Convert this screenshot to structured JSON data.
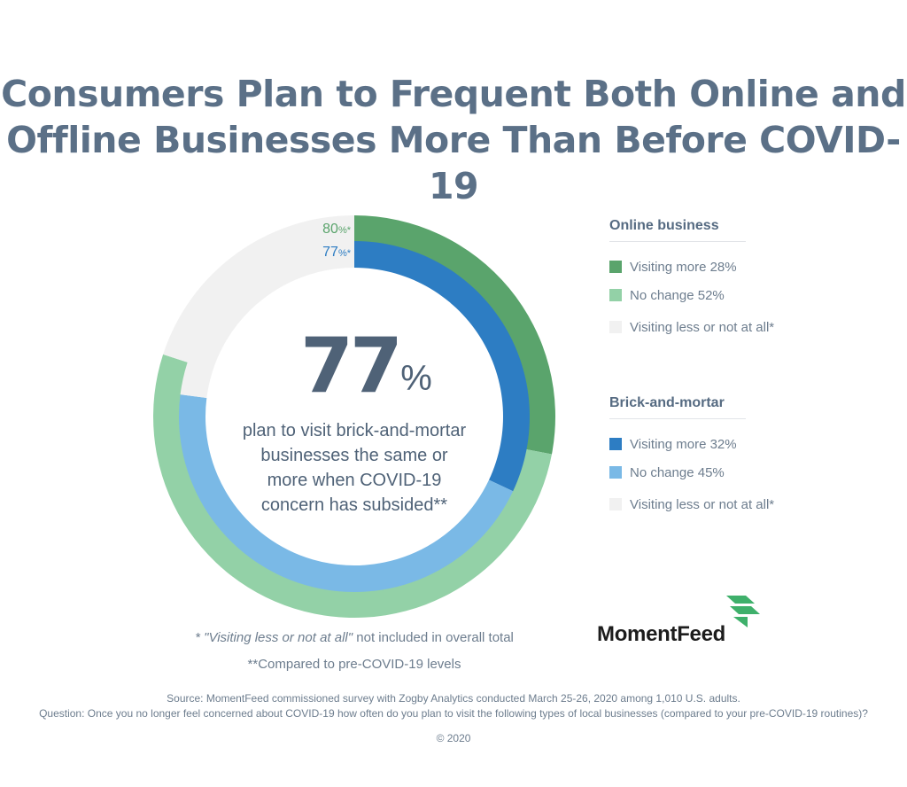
{
  "title_line1": "Consumers Plan to Frequent Both Online and",
  "title_line2": "Offline Businesses More Than Before COVID-19",
  "center": {
    "big_number": "77",
    "big_unit": "%",
    "description": "plan to visit brick-and-mortar businesses the same or more when COVID-19 concern has subsided**"
  },
  "ring_labels": {
    "outer": "80%*",
    "inner": "77%*"
  },
  "colors": {
    "online_more": "#5aa46c",
    "online_same": "#93d1a7",
    "online_less": "#f1f1f1",
    "brick_more": "#2d7dc3",
    "brick_same": "#7ab9e6",
    "brick_less": "#f1f1f1",
    "outer_label": "#5aa46c",
    "inner_label": "#2d7dc3"
  },
  "legend": {
    "online": {
      "title": "Online business",
      "items": [
        {
          "label": "Visiting more 28%",
          "color": "#5aa46c"
        },
        {
          "label": "No change 52%",
          "color": "#93d1a7"
        },
        {
          "label": "Visiting less or not at all*",
          "color": "#f1f1f1"
        }
      ]
    },
    "brick": {
      "title": "Brick-and-mortar",
      "items": [
        {
          "label": "Visiting more 32%",
          "color": "#2d7dc3"
        },
        {
          "label": "No change 45%",
          "color": "#7ab9e6"
        },
        {
          "label": "Visiting less or not at all*",
          "color": "#f1f1f1"
        }
      ]
    }
  },
  "footnotes": {
    "note1_italic": "* \"Visiting less or not at all\"",
    "note1_rest": " not included in overall total",
    "note2": "**Compared to pre-COVID-19 levels"
  },
  "source_line1": "Source: MomentFeed commissioned survey with Zogby Analytics conducted March 25-26, 2020 among 1,010 U.S. adults.",
  "source_line2": "Question: Once you no longer feel concerned about COVID-19 how often do you plan to visit the following types of local businesses (compared to your pre-COVID-19 routines)?",
  "copyright": "© 2020",
  "logo_text": "MomentFeed",
  "chart_data": {
    "type": "pie",
    "title": "Consumers Plan to Frequent Both Online and Offline Businesses More Than Before COVID-19",
    "series": [
      {
        "name": "Online business",
        "categories": [
          "Visiting more",
          "No change",
          "Visiting less or not at all*"
        ],
        "values": [
          28,
          52,
          20
        ],
        "total_label": "80%*"
      },
      {
        "name": "Brick-and-mortar",
        "categories": [
          "Visiting more",
          "No change",
          "Visiting less or not at all*"
        ],
        "values": [
          32,
          45,
          23
        ],
        "total_label": "77%*"
      }
    ],
    "legend_position": "right"
  }
}
